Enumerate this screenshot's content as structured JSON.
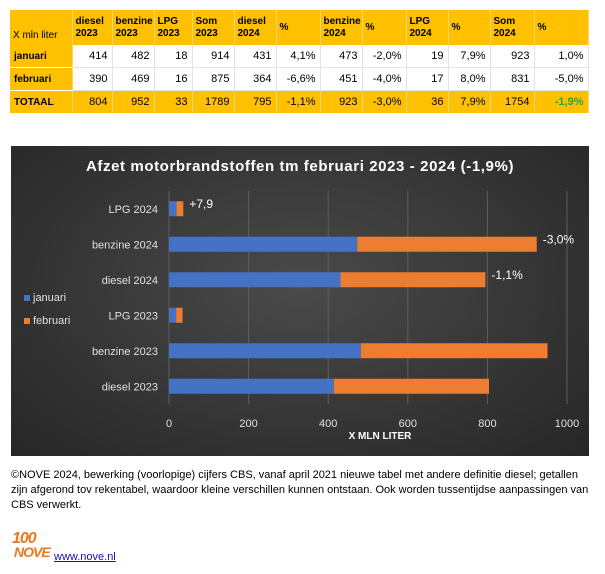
{
  "table": {
    "unit_label": "X mln liter",
    "headers": [
      [
        "diesel",
        "2023"
      ],
      [
        "benzine",
        "2023"
      ],
      [
        "LPG",
        "2023"
      ],
      [
        "Som",
        "2023"
      ],
      [
        "diesel",
        "2024"
      ],
      [
        "%",
        ""
      ],
      [
        "benzine",
        "2024"
      ],
      [
        "%",
        ""
      ],
      [
        "LPG",
        "2024"
      ],
      [
        "%",
        ""
      ],
      [
        "Som",
        "2024"
      ],
      [
        "%",
        ""
      ]
    ],
    "rows": [
      {
        "label": "januari",
        "cells": [
          "414",
          "482",
          "18",
          "914",
          "431",
          "4,1%",
          "473",
          "-2,0%",
          "19",
          "7,9%",
          "923",
          "1,0%"
        ]
      },
      {
        "label": "februari",
        "cells": [
          "390",
          "469",
          "16",
          "875",
          "364",
          "-6,6%",
          "451",
          "-4,0%",
          "17",
          "8,0%",
          "831",
          "-5,0%"
        ]
      },
      {
        "label": "TOTAAL",
        "cells": [
          "804",
          "952",
          "33",
          "1789",
          "795",
          "-1,1%",
          "923",
          "-3,0%",
          "36",
          "7,9%",
          "1754",
          "-1,9%"
        ]
      }
    ]
  },
  "chart_data": {
    "type": "bar",
    "orientation": "horizontal",
    "stacked": true,
    "title": "Afzet motorbrandstoffen tm februari 2023 - 2024 (-1,9%)",
    "xlabel": "X MLN LITER",
    "xlim": [
      0,
      1000
    ],
    "xticks": [
      0,
      200,
      400,
      600,
      800,
      1000
    ],
    "categories": [
      "LPG 2024",
      "benzine 2024",
      "diesel 2024",
      "LPG 2023",
      "benzine 2023",
      "diesel 2023"
    ],
    "series": [
      {
        "name": "januari",
        "color": "#4472C4",
        "values": [
          19,
          473,
          431,
          18,
          482,
          414
        ]
      },
      {
        "name": "februari",
        "color": "#ED7D31",
        "values": [
          17,
          451,
          364,
          16,
          469,
          390
        ]
      }
    ],
    "annotations": [
      {
        "category": "LPG 2024",
        "text": "+7,9"
      },
      {
        "category": "benzine 2024",
        "text": "-3,0%"
      },
      {
        "category": "diesel 2024",
        "text": "-1,1%"
      }
    ],
    "legend_position": "left",
    "grid": true
  },
  "footer": {
    "note": "©NOVE 2024, bewerking (voorlopige) cijfers CBS, vanaf april 2021 nieuwe tabel met andere definitie diesel; getallen zijn afgerond tov rekentabel, waardoor kleine verschillen kunnen ontstaan. Ook worden tussentijdse aanpassingen van CBS verwerkt.",
    "logo_number": "100",
    "logo_word": "NOVE",
    "link": "www.nove.nl"
  }
}
